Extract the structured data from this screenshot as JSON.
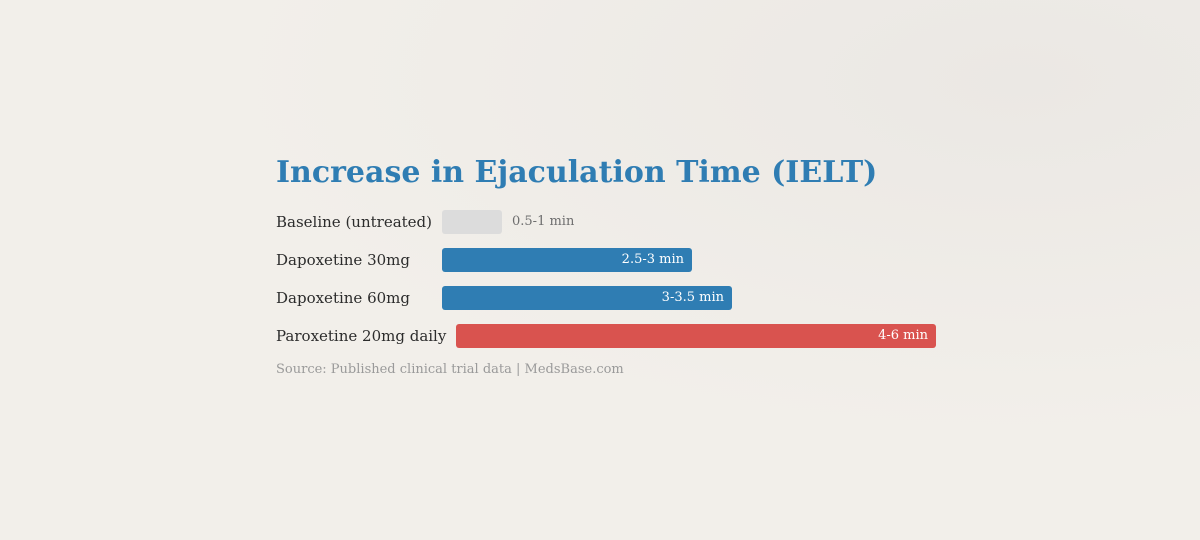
{
  "chart_data": {
    "type": "bar",
    "orientation": "horizontal",
    "title": "Increase in Ejaculation Time (IELT)",
    "categories": [
      "Baseline (untreated)",
      "Dapoxetine 30mg",
      "Dapoxetine 60mg",
      "Paroxetine 20mg daily"
    ],
    "values": [
      1.5,
      6.25,
      7.25,
      12.0
    ],
    "value_labels": [
      "0.5-1 min",
      "2.5-3 min",
      "3-3.5 min",
      "4-6 min"
    ],
    "label_positions": [
      "outside",
      "inside",
      "inside",
      "inside"
    ],
    "colors": [
      "#dcdcdc",
      "#2f7db3",
      "#2f7db3",
      "#d9534f"
    ],
    "xlim": [
      0,
      12
    ],
    "grid": false,
    "legend": "none"
  },
  "source": "Source: Published clinical trial data | MedsBase.com"
}
